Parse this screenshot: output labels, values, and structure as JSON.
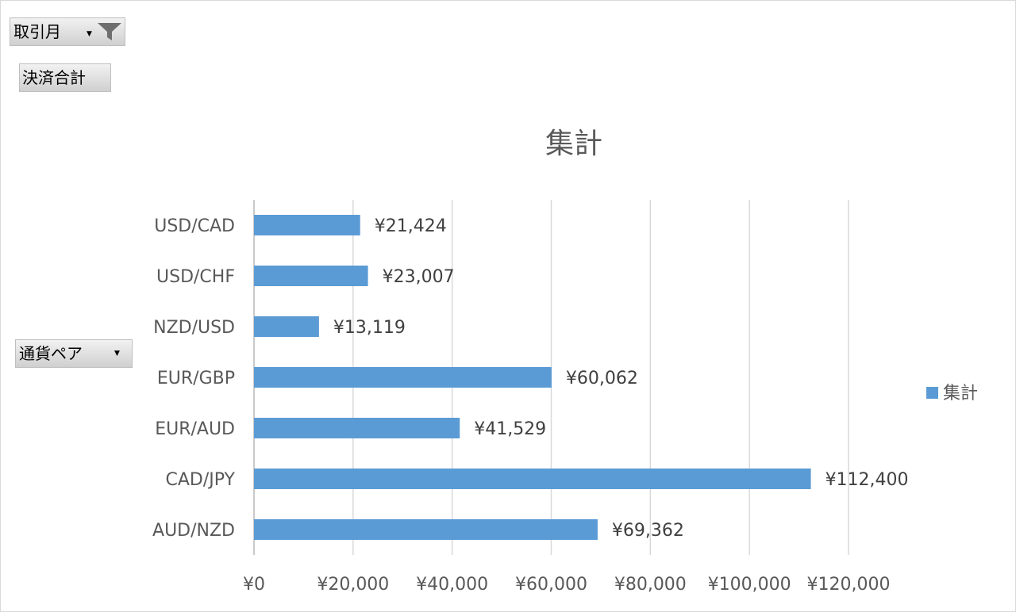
{
  "pivot_buttons": {
    "month_filter": "取引月",
    "value_field": "決済合計",
    "row_field": "通貨ペア"
  },
  "colors": {
    "bar": "#5b9bd5",
    "grid": "#d9d9d9",
    "text": "#595959"
  },
  "chart_data": {
    "type": "bar",
    "orientation": "horizontal",
    "title": "集計",
    "categories": [
      "AUD/NZD",
      "CAD/JPY",
      "EUR/AUD",
      "EUR/GBP",
      "NZD/USD",
      "USD/CHF",
      "USD/CAD"
    ],
    "series": [
      {
        "name": "集計",
        "values": [
          69362,
          112400,
          41529,
          60062,
          13119,
          23007,
          21424
        ],
        "labels": [
          "¥69,362",
          "¥112,400",
          "¥41,529",
          "¥60,062",
          "¥13,119",
          "¥23,007",
          "¥21,424"
        ]
      }
    ],
    "xlim": [
      0,
      120000
    ],
    "xticks": [
      0,
      20000,
      40000,
      60000,
      80000,
      100000,
      120000
    ],
    "xtick_labels": [
      "¥0",
      "¥20,000",
      "¥40,000",
      "¥60,000",
      "¥80,000",
      "¥100,000",
      "¥120,000"
    ],
    "grid": "vertical",
    "legend": "right"
  }
}
